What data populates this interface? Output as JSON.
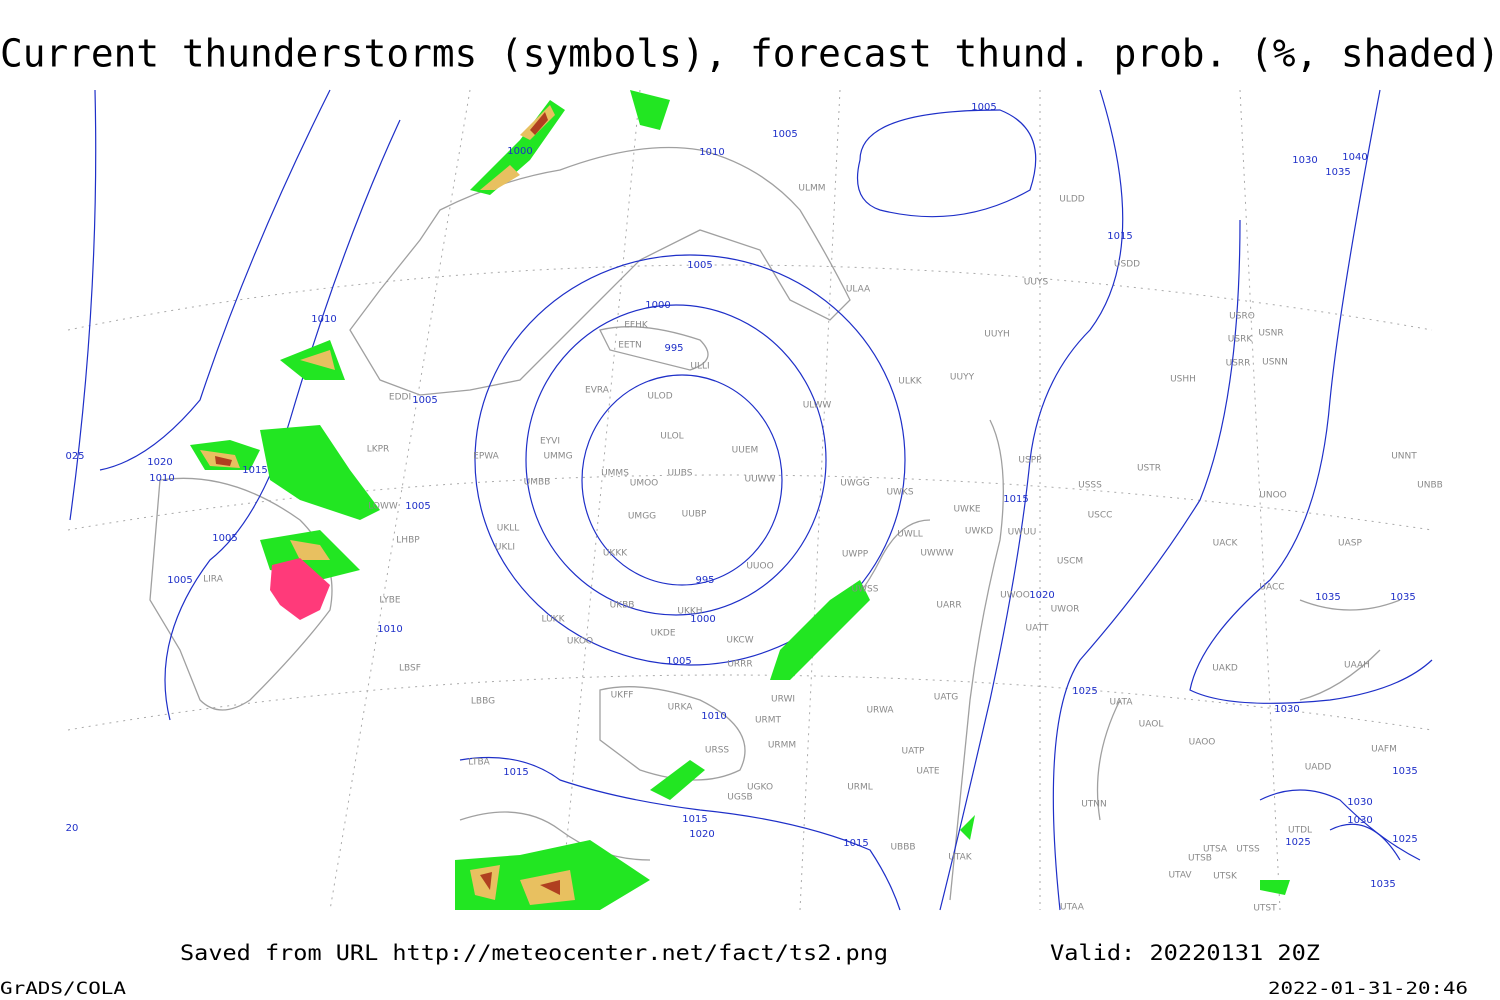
{
  "header": {
    "title": "Current thunderstorms (symbols), forecast thund. prob. (%, shaded)"
  },
  "footer": {
    "source": "Saved from URL http://meteocenter.net/fact/ts2.png",
    "valid": "Valid: 20220131 20Z",
    "software": "GrADS/COLA",
    "timestamp": "2022-01-31-20:46"
  },
  "map": {
    "isobar_labels": [
      "1005",
      "1005",
      "1010",
      "1000",
      "1010",
      "1005",
      "1005",
      "1000",
      "995",
      "1015",
      "1015",
      "1020",
      "1010",
      "1005",
      "1005",
      "1005",
      "1010",
      "995",
      "1000",
      "1005",
      "1010",
      "1015",
      "1020",
      "1025",
      "1030",
      "1035",
      "1035",
      "1030",
      "1040",
      "1035",
      "1015",
      "1015",
      "1020",
      "1015",
      "1025",
      "1030",
      "1030",
      "1035",
      "1025",
      "1035",
      "025",
      "20"
    ],
    "stations": [
      "EFHK",
      "EETN",
      "EVRA",
      "ULOD",
      "ULLI",
      "ULOL",
      "UUEM",
      "UMMG",
      "EYVI",
      "EPWA",
      "UMMS",
      "UUBS",
      "UUWW",
      "UMBB",
      "UMOO",
      "UMGG",
      "UUBP",
      "UKLL",
      "UKLI",
      "UKKK",
      "UUOO",
      "UKKH",
      "UKBB",
      "UKDE",
      "UKCW",
      "URRR",
      "UKOO",
      "UKFF",
      "URKA",
      "URMT",
      "URMM",
      "URSS",
      "UGSB",
      "UGKO",
      "URML",
      "UBBB",
      "UWGG",
      "UWKS",
      "UWKE",
      "UWKD",
      "UWUU",
      "UWLL",
      "UWWW",
      "UWPP",
      "UWSS",
      "UATG",
      "URWA",
      "URWI",
      "UARR",
      "UWOO",
      "UWOR",
      "UATT",
      "UUYY",
      "UUYS",
      "UUYH",
      "ULKK",
      "ULWW",
      "ULAA",
      "ULMM",
      "ULDD",
      "USDD",
      "USSS",
      "USCC",
      "USCM",
      "USTR",
      "USPP",
      "USHH",
      "USRR",
      "USRK",
      "USRO",
      "USNR",
      "USNN",
      "UNOO",
      "UACK",
      "UASP",
      "UACC",
      "UAAH",
      "UAKD",
      "UATA",
      "UAOL",
      "UAOO",
      "UAFM",
      "UADD",
      "UATE",
      "UATP",
      "UTAK",
      "UTAA",
      "UTSA",
      "UTSS",
      "UTSB",
      "UTAV",
      "UTSK",
      "UTNN",
      "UTDL",
      "UTST",
      "UNNT",
      "UNBB",
      "LKPR",
      "EDDI",
      "LOWW",
      "LHBP",
      "LIRA",
      "LYBE",
      "LBSF",
      "LBBG",
      "LTBA",
      "LUKK"
    ]
  }
}
